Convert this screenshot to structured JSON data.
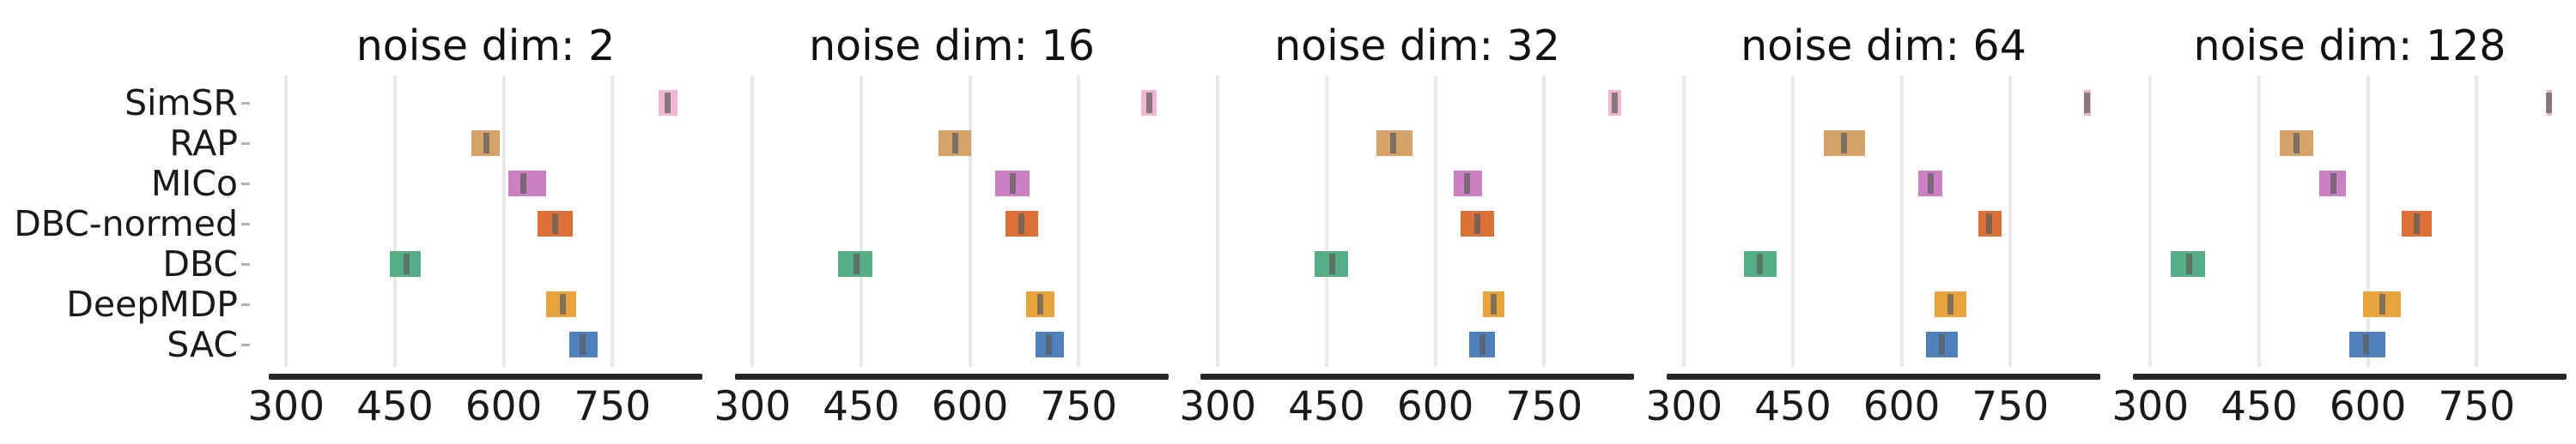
{
  "chart_data": {
    "type": "bar",
    "subtype": "horizontal-interval-plot",
    "description": "Five side-by-side panels showing score intervals (low/median/high) per method for increasing noise dimension",
    "categories": [
      "SimSR",
      "RAP",
      "MICo",
      "DBC-normed",
      "DBC",
      "DeepMDP",
      "SAC"
    ],
    "x_ticks": [
      300,
      450,
      600,
      750
    ],
    "x_range": [
      276,
      874
    ],
    "grid": "vertical-only",
    "legend": "none",
    "panels": [
      {
        "title": "noise dim: 2",
        "series": [
          {
            "name": "SimSR",
            "low": 814,
            "median": 826,
            "high": 840
          },
          {
            "name": "RAP",
            "low": 556,
            "median": 576,
            "high": 594
          },
          {
            "name": "MICo",
            "low": 606,
            "median": 627,
            "high": 658
          },
          {
            "name": "DBC-normed",
            "low": 647,
            "median": 671,
            "high": 695
          },
          {
            "name": "DBC",
            "low": 443,
            "median": 466,
            "high": 486
          },
          {
            "name": "DeepMDP",
            "low": 658,
            "median": 681,
            "high": 700
          },
          {
            "name": "SAC",
            "low": 690,
            "median": 709,
            "high": 730
          }
        ]
      },
      {
        "title": "noise dim: 16",
        "series": [
          {
            "name": "SimSR",
            "low": 836,
            "median": 847,
            "high": 857
          },
          {
            "name": "RAP",
            "low": 557,
            "median": 580,
            "high": 602
          },
          {
            "name": "MICo",
            "low": 635,
            "median": 659,
            "high": 682
          },
          {
            "name": "DBC-normed",
            "low": 649,
            "median": 671,
            "high": 694
          },
          {
            "name": "DBC",
            "low": 418,
            "median": 443,
            "high": 465
          },
          {
            "name": "DeepMDP",
            "low": 677,
            "median": 697,
            "high": 717
          },
          {
            "name": "SAC",
            "low": 690,
            "median": 709,
            "high": 729
          }
        ]
      },
      {
        "title": "noise dim: 32",
        "series": [
          {
            "name": "SimSR",
            "low": 839,
            "median": 847,
            "high": 856
          },
          {
            "name": "RAP",
            "low": 519,
            "median": 542,
            "high": 569
          },
          {
            "name": "MICo",
            "low": 625,
            "median": 644,
            "high": 664
          },
          {
            "name": "DBC-normed",
            "low": 635,
            "median": 658,
            "high": 681
          },
          {
            "name": "DBC",
            "low": 434,
            "median": 458,
            "high": 480
          },
          {
            "name": "DeepMDP",
            "low": 665,
            "median": 680,
            "high": 695
          },
          {
            "name": "SAC",
            "low": 647,
            "median": 665,
            "high": 682
          }
        ]
      },
      {
        "title": "noise dim: 64",
        "series": [
          {
            "name": "SimSR",
            "low": 851,
            "median": 856,
            "high": 861
          },
          {
            "name": "RAP",
            "low": 493,
            "median": 521,
            "high": 550
          },
          {
            "name": "MICo",
            "low": 623,
            "median": 640,
            "high": 656
          },
          {
            "name": "DBC-normed",
            "low": 706,
            "median": 721,
            "high": 738
          },
          {
            "name": "DBC",
            "low": 383,
            "median": 404,
            "high": 428
          },
          {
            "name": "DeepMDP",
            "low": 645,
            "median": 667,
            "high": 689
          },
          {
            "name": "SAC",
            "low": 634,
            "median": 655,
            "high": 677
          }
        ]
      },
      {
        "title": "noise dim: 128",
        "series": [
          {
            "name": "SimSR",
            "low": 847,
            "median": 850,
            "high": 854
          },
          {
            "name": "RAP",
            "low": 478,
            "median": 501,
            "high": 525
          },
          {
            "name": "MICo",
            "low": 533,
            "median": 552,
            "high": 570
          },
          {
            "name": "DBC-normed",
            "low": 647,
            "median": 667,
            "high": 688
          },
          {
            "name": "DBC",
            "low": 328,
            "median": 353,
            "high": 376
          },
          {
            "name": "DeepMDP",
            "low": 593,
            "median": 620,
            "high": 645
          },
          {
            "name": "SAC",
            "low": 574,
            "median": 598,
            "high": 624
          }
        ]
      }
    ]
  },
  "style": {
    "background": "#ffffff",
    "grid_color": "#e9e9e9",
    "spine_color": "#262626",
    "text_color": "#1a1a1a",
    "median_color": "#5d5d5d",
    "method_colors": {
      "SimSR": "#f2b6d2",
      "RAP": "#d5a26a",
      "MICo": "#ca80c1",
      "DBC-normed": "#dc7038",
      "DBC": "#55ae87",
      "DeepMDP": "#e9a33e",
      "SAC": "#4e80bb"
    }
  }
}
